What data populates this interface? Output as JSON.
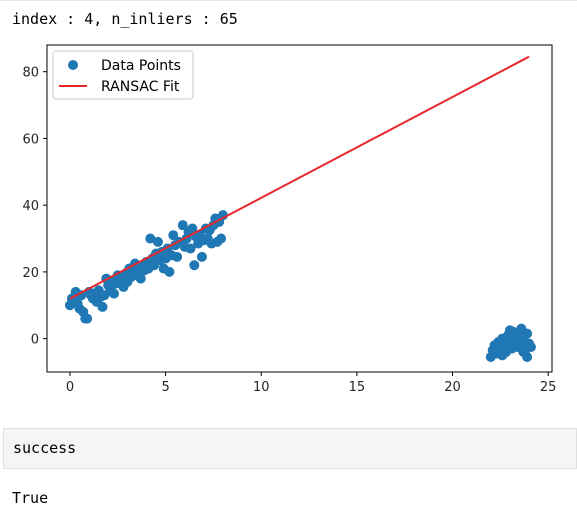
{
  "output": {
    "index_line": "index : 4, n_inliers : 65"
  },
  "cell": {
    "code": "success"
  },
  "result": {
    "value": "True"
  },
  "chart_data": {
    "type": "scatter",
    "title": "",
    "xlabel": "",
    "ylabel": "",
    "xlim": [
      -1.2,
      25.2
    ],
    "ylim": [
      -10,
      88
    ],
    "xticks": [
      0,
      5,
      10,
      15,
      20,
      25
    ],
    "yticks": [
      0,
      20,
      40,
      60,
      80
    ],
    "grid": false,
    "legend_position": "top-left",
    "series": [
      {
        "name": "Data Points",
        "kind": "scatter",
        "color": "#1f77b4",
        "points": [
          [
            0.0,
            10.0
          ],
          [
            0.1,
            12.0
          ],
          [
            0.2,
            11.5
          ],
          [
            0.3,
            14.0
          ],
          [
            0.4,
            10.5
          ],
          [
            0.5,
            9.0
          ],
          [
            0.6,
            13.0
          ],
          [
            0.7,
            8.0
          ],
          [
            0.8,
            6.0
          ],
          [
            0.9,
            6.0
          ],
          [
            1.0,
            14.0
          ],
          [
            1.1,
            13.0
          ],
          [
            1.2,
            12.0
          ],
          [
            1.3,
            13.5
          ],
          [
            1.4,
            11.0
          ],
          [
            1.5,
            14.5
          ],
          [
            1.6,
            12.5
          ],
          [
            1.7,
            9.5
          ],
          [
            1.8,
            13.0
          ],
          [
            1.9,
            18.0
          ],
          [
            2.0,
            16.0
          ],
          [
            2.1,
            15.0
          ],
          [
            2.2,
            17.0
          ],
          [
            2.3,
            13.5
          ],
          [
            2.4,
            16.5
          ],
          [
            2.5,
            19.0
          ],
          [
            2.6,
            17.5
          ],
          [
            2.7,
            18.0
          ],
          [
            2.8,
            15.5
          ],
          [
            2.9,
            19.5
          ],
          [
            3.0,
            17.0
          ],
          [
            3.1,
            21.0
          ],
          [
            3.2,
            18.5
          ],
          [
            3.3,
            20.0
          ],
          [
            3.4,
            22.5
          ],
          [
            3.5,
            19.0
          ],
          [
            3.6,
            21.5
          ],
          [
            3.7,
            18.0
          ],
          [
            3.8,
            22.0
          ],
          [
            3.9,
            20.5
          ],
          [
            4.0,
            23.0
          ],
          [
            4.1,
            21.0
          ],
          [
            4.2,
            30.0
          ],
          [
            4.3,
            24.0
          ],
          [
            4.4,
            22.0
          ],
          [
            4.5,
            25.5
          ],
          [
            4.6,
            29.0
          ],
          [
            4.7,
            23.5
          ],
          [
            4.8,
            26.0
          ],
          [
            4.9,
            21.0
          ],
          [
            5.0,
            24.0
          ],
          [
            5.1,
            27.0
          ],
          [
            5.2,
            20.0
          ],
          [
            5.3,
            25.0
          ],
          [
            5.4,
            31.0
          ],
          [
            5.5,
            28.0
          ],
          [
            5.6,
            24.5
          ],
          [
            5.7,
            29.0
          ],
          [
            5.9,
            34.0
          ],
          [
            6.0,
            27.5
          ],
          [
            6.1,
            30.0
          ],
          [
            6.2,
            32.0
          ],
          [
            6.3,
            27.0
          ],
          [
            6.4,
            33.0
          ],
          [
            6.5,
            22.0
          ],
          [
            6.6,
            30.5
          ],
          [
            6.7,
            28.5
          ],
          [
            6.8,
            31.0
          ],
          [
            6.9,
            24.5
          ],
          [
            7.0,
            29.5
          ],
          [
            7.1,
            33.0
          ],
          [
            7.2,
            30.0
          ],
          [
            7.3,
            32.5
          ],
          [
            7.4,
            28.5
          ],
          [
            7.5,
            34.0
          ],
          [
            7.6,
            36.0
          ],
          [
            7.7,
            29.0
          ],
          [
            7.8,
            35.0
          ],
          [
            7.9,
            30.0
          ],
          [
            8.0,
            37.0
          ],
          [
            22.0,
            -5.5
          ],
          [
            22.1,
            -3.5
          ],
          [
            22.2,
            -2.0
          ],
          [
            22.3,
            -4.5
          ],
          [
            22.4,
            -1.0
          ],
          [
            22.5,
            -3.0
          ],
          [
            22.6,
            0.0
          ],
          [
            22.7,
            -2.5
          ],
          [
            22.8,
            -4.0
          ],
          [
            22.9,
            -1.5
          ],
          [
            23.0,
            0.5
          ],
          [
            23.1,
            -3.0
          ],
          [
            23.2,
            2.0
          ],
          [
            23.3,
            -1.0
          ],
          [
            23.4,
            1.0
          ],
          [
            23.5,
            -2.0
          ],
          [
            23.6,
            3.0
          ],
          [
            23.7,
            0.0
          ],
          [
            23.8,
            -3.5
          ],
          [
            23.9,
            1.5
          ],
          [
            24.0,
            -1.5
          ],
          [
            23.2,
            -0.5
          ],
          [
            23.6,
            2.5
          ],
          [
            23.9,
            -5.5
          ],
          [
            22.6,
            -5.0
          ],
          [
            24.1,
            -2.5
          ],
          [
            23.0,
            2.5
          ],
          [
            23.4,
            -2.5
          ],
          [
            22.9,
            1.0
          ],
          [
            23.7,
            -4.0
          ]
        ]
      },
      {
        "name": "RANSAC Fit",
        "kind": "line",
        "color": "#e8282b",
        "x": [
          0.0,
          24.0
        ],
        "y": [
          12.0,
          84.5
        ]
      }
    ]
  }
}
